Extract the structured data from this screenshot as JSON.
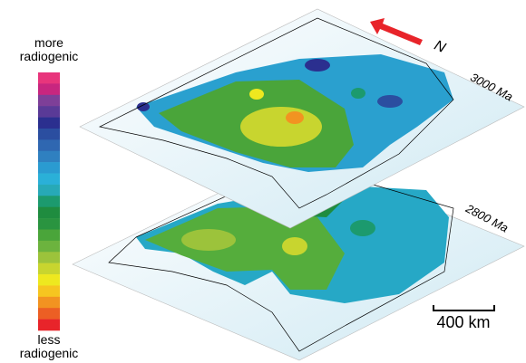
{
  "legend": {
    "top_label": [
      "more",
      "radiogenic"
    ],
    "bottom_label": [
      "less",
      "radiogenic"
    ]
  },
  "layers": [
    {
      "label": "3000 Ma"
    },
    {
      "label": "2800 Ma"
    }
  ],
  "north_label": "N",
  "scale_bar": {
    "label": "400 km"
  }
}
